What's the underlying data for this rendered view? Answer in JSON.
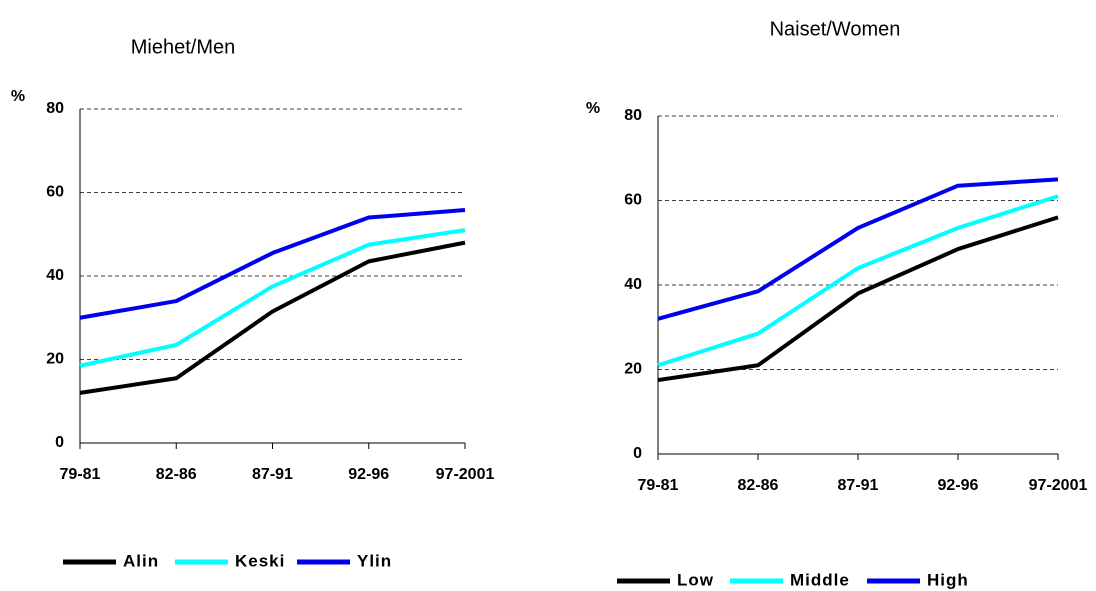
{
  "chart_data": [
    {
      "type": "line",
      "title": "Miehet/Men",
      "y_label": "%",
      "categories": [
        "79-81",
        "82-86",
        "87-91",
        "92-96",
        "97-2001"
      ],
      "series": [
        {
          "name": "Alin",
          "color": "#000000",
          "values": [
            12,
            15.5,
            31.5,
            43.5,
            48
          ]
        },
        {
          "name": "Keski",
          "color": "#00ffff",
          "values": [
            18.5,
            23.5,
            37.5,
            47.5,
            51
          ]
        },
        {
          "name": "Ylin",
          "color": "#0000ee",
          "values": [
            30,
            34,
            45.5,
            54,
            55.8
          ]
        }
      ],
      "ylim": [
        0,
        80
      ],
      "yticks": [
        0,
        20,
        40,
        60,
        80
      ],
      "grid": true,
      "legend": "bottom"
    },
    {
      "type": "line",
      "title": "Naiset/Women",
      "y_label": "%",
      "categories": [
        "79-81",
        "82-86",
        "87-91",
        "92-96",
        "97-2001"
      ],
      "series": [
        {
          "name": "Low",
          "color": "#000000",
          "values": [
            17.5,
            21,
            38,
            48.5,
            56
          ]
        },
        {
          "name": "Middle",
          "color": "#00ffff",
          "values": [
            21,
            28.5,
            44,
            53.5,
            61
          ]
        },
        {
          "name": "High",
          "color": "#0000ee",
          "values": [
            32,
            38.5,
            53.5,
            63.5,
            65
          ]
        }
      ],
      "ylim": [
        0,
        80
      ],
      "yticks": [
        0,
        20,
        40,
        60,
        80
      ],
      "grid": true,
      "legend": "bottom"
    }
  ]
}
